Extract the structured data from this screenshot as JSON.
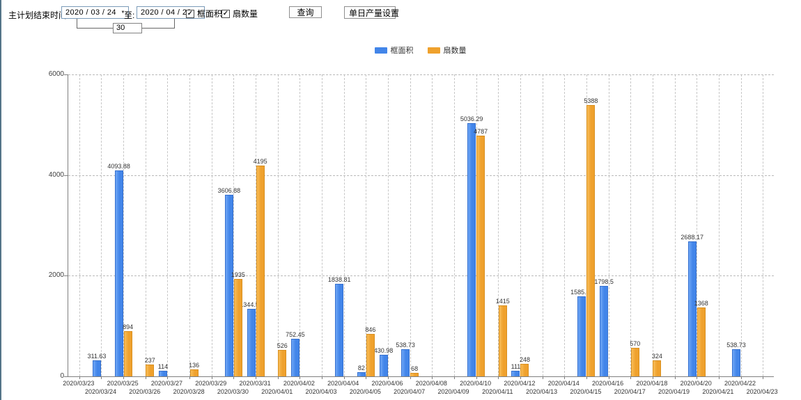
{
  "toolbar": {
    "plan_end_label": "主计划结束时间:",
    "date_from": "2020 / 03 / 24",
    "to_label": "至:",
    "date_to": "2020 / 04 / 23",
    "days_between": "30",
    "checkbox_frame_label": "框面积",
    "checkbox_fan_label": "扇数量",
    "query_button_label": "查询",
    "daily_output_button_label": "单日产量设置"
  },
  "legend": {
    "frame_label": "框面积",
    "fan_label": "扇数量"
  },
  "colors": {
    "frame_series": "#4285e9",
    "fan_series": "#efa12d"
  },
  "chart_data": {
    "type": "bar",
    "title": "",
    "xlabel": "",
    "ylabel": "",
    "ylim": [
      0,
      6000
    ],
    "yticks": [
      "0",
      "2000",
      "4000",
      "6000"
    ],
    "grid": "dashed",
    "legend_position": "top-center",
    "categories": [
      "2020/03/23",
      "2020/03/24",
      "2020/03/25",
      "2020/03/26",
      "2020/03/27",
      "2020/03/28",
      "2020/03/29",
      "2020/03/30",
      "2020/03/31",
      "2020/04/01",
      "2020/04/02",
      "2020/04/03",
      "2020/04/04",
      "2020/04/05",
      "2020/04/06",
      "2020/04/07",
      "2020/04/08",
      "2020/04/09",
      "2020/04/10",
      "2020/04/11",
      "2020/04/12",
      "2020/04/13",
      "2020/04/14",
      "2020/04/15",
      "2020/04/16",
      "2020/04/17",
      "2020/04/18",
      "2020/04/19",
      "2020/04/20",
      "2020/04/21",
      "2020/04/22",
      "2020/04/23"
    ],
    "series": [
      {
        "name": "框面积",
        "key": "frame",
        "values": [
          null,
          "311.63",
          "4093.88",
          null,
          "114",
          null,
          null,
          "3606.88",
          "1344.95",
          null,
          "752.45",
          null,
          "1838.81",
          "82",
          "430.98",
          "538.73",
          null,
          null,
          "5036.29",
          null,
          "111",
          null,
          null,
          "1585.96",
          "1798.5",
          null,
          null,
          null,
          "2688.17",
          null,
          "538.73",
          null
        ]
      },
      {
        "name": "扇数量",
        "key": "fan",
        "values": [
          null,
          null,
          "894",
          "237",
          null,
          "136",
          null,
          "1935",
          "4195",
          "526",
          null,
          null,
          null,
          "846",
          null,
          "68",
          null,
          null,
          "4787",
          "1415",
          "248",
          null,
          null,
          "5388",
          null,
          "570",
          "324",
          null,
          "1368",
          null,
          null,
          null
        ]
      }
    ]
  }
}
